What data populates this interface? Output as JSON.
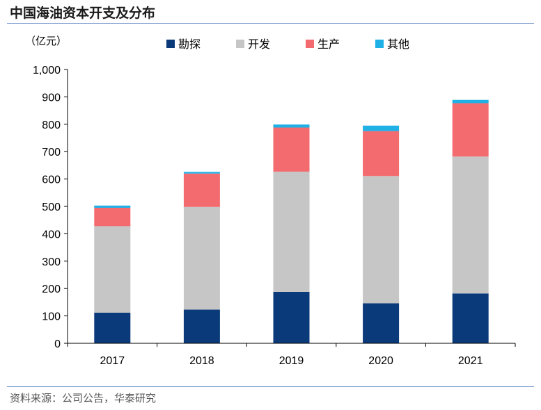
{
  "title": "中国海油资本开支及分布",
  "source": "资料来源：公司公告，华泰研究",
  "colors": {
    "exploration": "#0a3a7a",
    "development": "#c6c6c6",
    "production": "#f36b6f",
    "other": "#1fb0e6",
    "rule": "#6a8fc8"
  },
  "chart_data": {
    "type": "bar",
    "stacked": true,
    "unit_label": "（亿元）",
    "categories": [
      "2017",
      "2018",
      "2019",
      "2020",
      "2021"
    ],
    "series": [
      {
        "name": "勘探",
        "color": "#0a3a7a",
        "values": [
          112,
          123,
          188,
          146,
          182
        ]
      },
      {
        "name": "开发",
        "color": "#c6c6c6",
        "values": [
          316,
          375,
          439,
          465,
          500
        ]
      },
      {
        "name": "生产",
        "color": "#f36b6f",
        "values": [
          67,
          122,
          161,
          164,
          195
        ]
      },
      {
        "name": "其他",
        "color": "#1fb0e6",
        "values": [
          8,
          6,
          11,
          20,
          12
        ]
      }
    ],
    "y_ticks": [
      "0",
      "100",
      "200",
      "300",
      "400",
      "500",
      "600",
      "700",
      "800",
      "900",
      "1,000"
    ],
    "ylim": [
      0,
      1000
    ],
    "legend_position": "top-center",
    "grid": false
  }
}
